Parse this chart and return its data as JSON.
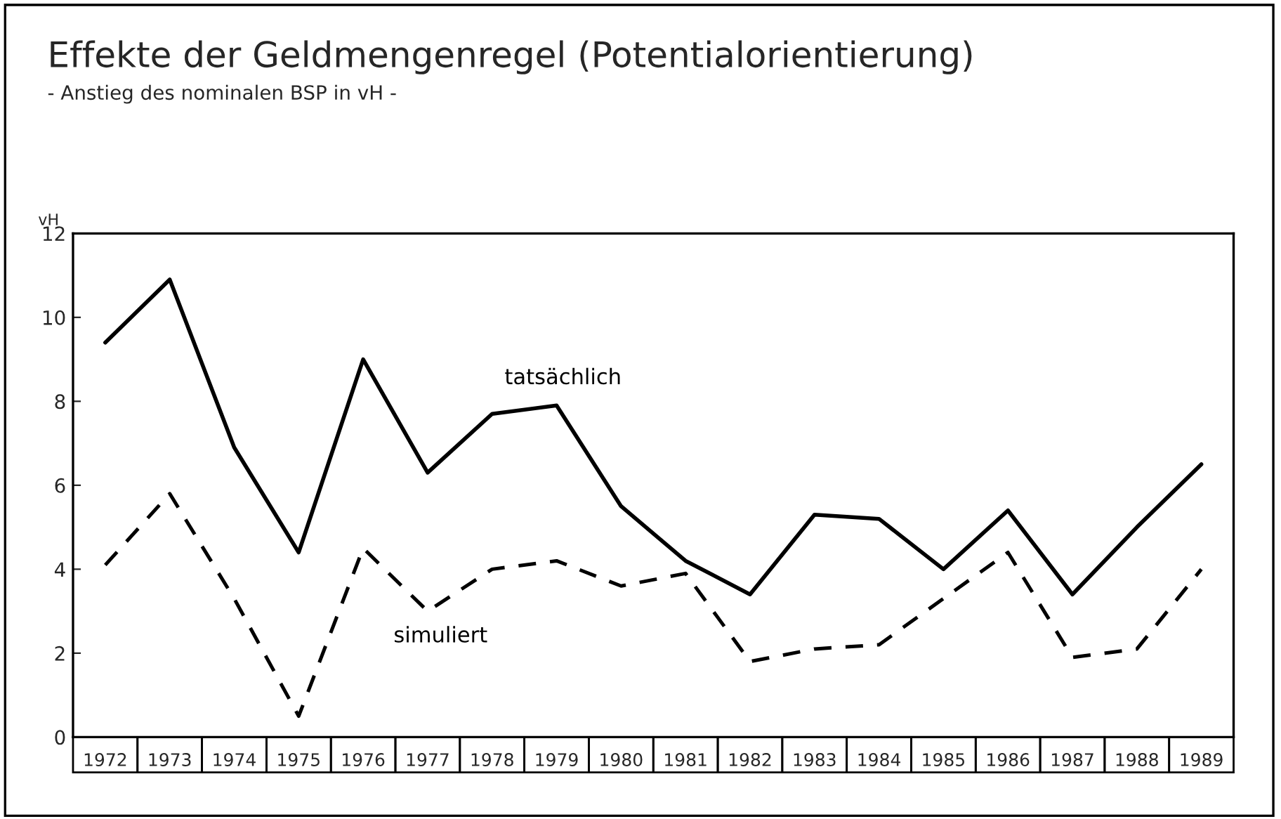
{
  "chart_data": {
    "type": "line",
    "title": "Effekte der Geldmengenregel (Potentialorientierung)",
    "subtitle": "- Anstieg des nominalen BSP in vH -",
    "ylabel": "vH",
    "categories": [
      "1972",
      "1973",
      "1974",
      "1975",
      "1976",
      "1977",
      "1978",
      "1979",
      "1980",
      "1981",
      "1982",
      "1983",
      "1984",
      "1985",
      "1986",
      "1987",
      "1988",
      "1989"
    ],
    "series": [
      {
        "name": "tatsächlich",
        "color": "#000000",
        "line_style": "solid",
        "values": [
          9.4,
          10.9,
          6.9,
          4.4,
          9.0,
          6.3,
          7.7,
          7.9,
          5.5,
          4.2,
          3.4,
          5.3,
          5.2,
          4.0,
          5.4,
          3.4,
          5.0,
          6.5
        ]
      },
      {
        "name": "simuliert",
        "color": "#000000",
        "line_style": "dashed",
        "values": [
          4.1,
          5.8,
          3.3,
          0.5,
          4.5,
          3.0,
          4.0,
          4.2,
          3.6,
          3.9,
          1.8,
          2.1,
          2.2,
          3.3,
          4.4,
          1.9,
          2.1,
          4.0
        ]
      }
    ],
    "ylim": [
      0,
      12
    ],
    "yticks": [
      0,
      2,
      4,
      6,
      8,
      10,
      12
    ],
    "grid": false,
    "legend": false,
    "marker": "none"
  }
}
